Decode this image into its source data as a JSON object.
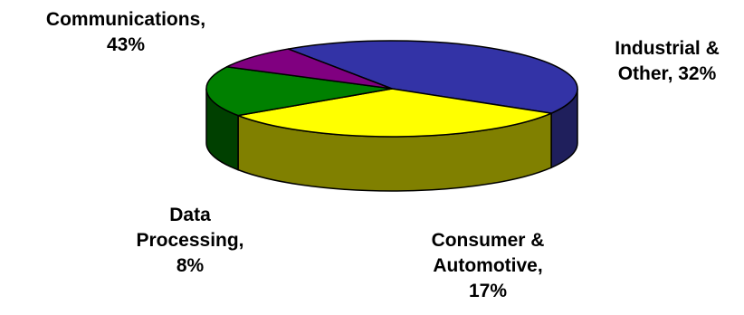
{
  "chart_data": {
    "type": "pie",
    "style": "3d",
    "slices": [
      {
        "name": "Communications",
        "value": 43,
        "color": "#3333A6",
        "side_color": "#1F1F5C"
      },
      {
        "name": "Industrial & Other",
        "value": 32,
        "color": "#FFFF00",
        "side_color": "#808000"
      },
      {
        "name": "Consumer & Automotive",
        "value": 17,
        "color": "#008000",
        "side_color": "#004000"
      },
      {
        "name": "Data Processing",
        "value": 8,
        "color": "#800080",
        "side_color": "#400040"
      }
    ],
    "labels": [
      {
        "lines": [
          "Communications,",
          "43%"
        ]
      },
      {
        "lines": [
          "Industrial &",
          "Other, 32%"
        ]
      },
      {
        "lines": [
          "Consumer &",
          "Automotive,",
          "17%"
        ]
      },
      {
        "lines": [
          "Data",
          "Processing,",
          "8%"
        ]
      }
    ],
    "title": ""
  }
}
